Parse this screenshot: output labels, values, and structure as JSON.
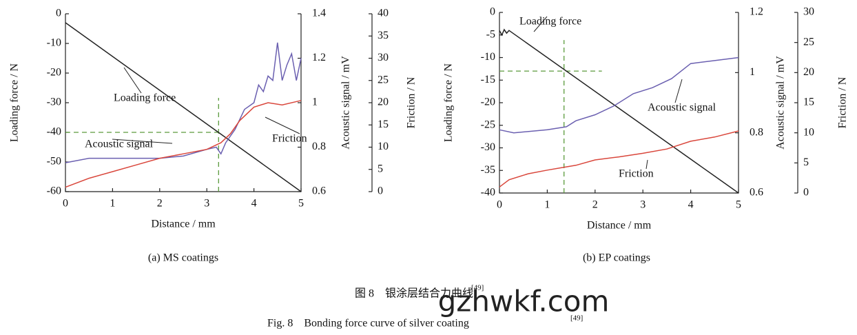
{
  "chart_data": [
    {
      "type": "line",
      "subtitle": "(a) MS coatings",
      "xlabel": "Distance / mm",
      "ylabel": "Loading force / N",
      "y2label": "Acoustic signal / mV",
      "y3label": "Friction / N",
      "xlim": [
        0,
        5
      ],
      "xticks": [
        0,
        1,
        2,
        3,
        4,
        5
      ],
      "ylim": [
        -60,
        0
      ],
      "yticks": [
        0,
        -10,
        -20,
        -30,
        -40,
        -50,
        -60
      ],
      "y2lim": [
        0.6,
        1.4
      ],
      "y2ticks": [
        0.6,
        0.8,
        1.0,
        1.2,
        1.4
      ],
      "y3lim": [
        0,
        40
      ],
      "y3ticks": [
        0,
        5,
        10,
        15,
        20,
        25,
        30,
        35,
        40
      ],
      "reference": {
        "x": 3.25,
        "y": -40
      },
      "series": [
        {
          "name": "Loading force",
          "color": "#222222",
          "x": [
            0,
            5
          ],
          "values": [
            -3,
            -60
          ]
        },
        {
          "name": "Acoustic signal",
          "color": "#6a5fb0",
          "axis": "y2",
          "x": [
            0,
            0.5,
            1,
            1.5,
            2,
            2.5,
            3,
            3.2,
            3.3,
            3.4,
            3.6,
            3.8,
            4,
            4.1,
            4.2,
            4.3,
            4.4,
            4.5,
            4.6,
            4.7,
            4.8,
            4.9,
            5
          ],
          "values": [
            0.73,
            0.75,
            0.75,
            0.75,
            0.75,
            0.76,
            0.79,
            0.8,
            0.77,
            0.82,
            0.88,
            0.97,
            1.0,
            1.08,
            1.05,
            1.12,
            1.1,
            1.27,
            1.1,
            1.17,
            1.22,
            1.1,
            1.2
          ]
        },
        {
          "name": "Friction",
          "color": "#d9463b",
          "axis": "y3",
          "x": [
            0,
            0.5,
            1,
            1.5,
            2,
            2.5,
            3,
            3.3,
            3.5,
            3.7,
            4,
            4.3,
            4.6,
            5
          ],
          "values": [
            1,
            3,
            4.5,
            6,
            7.5,
            8.5,
            9.5,
            11,
            13,
            16,
            19,
            20,
            19.5,
            20.5
          ]
        }
      ]
    },
    {
      "type": "line",
      "subtitle": "(b) EP coatings",
      "xlabel": "Distance / mm",
      "ylabel": "Loading force / N",
      "y2label": "Acoustic signal / mV",
      "y3label": "Friction / N",
      "xlim": [
        0,
        5
      ],
      "xticks": [
        0,
        1,
        2,
        3,
        4,
        5
      ],
      "ylim": [
        -40,
        0
      ],
      "yticks": [
        0,
        -5,
        -10,
        -15,
        -20,
        -25,
        -30,
        -35,
        -40
      ],
      "y2lim": [
        0.6,
        1.2
      ],
      "y2ticks": [
        0.6,
        0.8,
        1.0,
        1.2
      ],
      "y3lim": [
        0,
        30
      ],
      "y3ticks": [
        0,
        5,
        10,
        15,
        20,
        25,
        30
      ],
      "reference": {
        "x": 1.35,
        "y": -13
      },
      "series": [
        {
          "name": "Loading force",
          "color": "#222222",
          "x": [
            0,
            0.05,
            0.1,
            0.15,
            0.2,
            5
          ],
          "values": [
            -4,
            -5,
            -3.8,
            -4.6,
            -4,
            -40
          ]
        },
        {
          "name": "Acoustic signal",
          "color": "#6a5fb0",
          "axis": "y2",
          "x": [
            0,
            0.3,
            1,
            1.4,
            1.6,
            2,
            2.4,
            2.8,
            3.2,
            3.6,
            4,
            4.5,
            5
          ],
          "values": [
            0.81,
            0.8,
            0.81,
            0.82,
            0.84,
            0.86,
            0.89,
            0.93,
            0.95,
            0.98,
            1.03,
            1.04,
            1.05
          ]
        },
        {
          "name": "Friction",
          "color": "#d9463b",
          "axis": "y3",
          "x": [
            0,
            0.2,
            0.6,
            1,
            1.3,
            1.6,
            2,
            2.5,
            3,
            3.5,
            4,
            4.5,
            5
          ],
          "values": [
            1,
            2.2,
            3.2,
            3.8,
            4.2,
            4.6,
            5.5,
            6,
            6.6,
            7.3,
            8.6,
            9.3,
            10.3
          ]
        }
      ]
    }
  ],
  "figure": {
    "caption_zh": "图 8　银涂层结合力曲线",
    "caption_en": "Fig. 8　Bonding force curve of silver coating",
    "ref": "[49]",
    "watermark": "gzhwkf.com"
  }
}
